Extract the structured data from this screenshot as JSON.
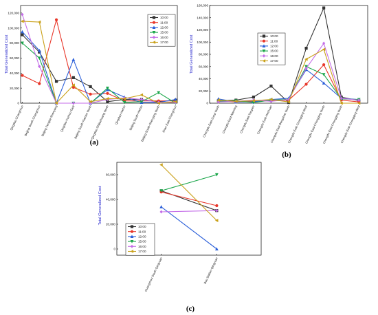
{
  "colors": {
    "10:00": "#333333",
    "11:00": "#e8372a",
    "12:00": "#2b5fd9",
    "15:00": "#1aa64a",
    "16:00": "#c46ee8",
    "17:00": "#c9a018"
  },
  "markers": {
    "10:00": "square",
    "11:00": "circle",
    "12:00": "triangle-up",
    "15:00": "triangle-down",
    "16:00": "diamond",
    "17:00": "triangle-left"
  },
  "chart_data": [
    {
      "panel": "(a)",
      "type": "line",
      "ylabel": "Total Generalized Cost",
      "ylim": [
        0,
        130000
      ],
      "yticks": [
        0,
        20000,
        40000,
        60000,
        80000,
        100000,
        120000
      ],
      "ytick_labels": [
        "0",
        "20,000",
        "40,000",
        "60,000",
        "80,000",
        "100,000",
        "120,000"
      ],
      "legend": "top-right",
      "categories": [
        "Qingdao-Changchun",
        "Beijing South-Changchun",
        "Beijing Fengtai-Shenyang",
        "Qingdao-Xuzhou East",
        "Beijing South-Xiamen North",
        "Qingdao-Shijiazhuang North",
        "Qingdao-Harbin",
        "Beijing South-Harbin",
        "Beijing South-Shenyang North",
        "Jinan East-Changchun"
      ],
      "series": [
        {
          "name": "10:00",
          "values": [
            91000,
            68000,
            29000,
            34000,
            22000,
            2000,
            5000,
            5000,
            2000,
            4000
          ]
        },
        {
          "name": "11:00",
          "values": [
            37000,
            26000,
            111000,
            21000,
            12000,
            13000,
            3000,
            3000,
            3000,
            3000
          ]
        },
        {
          "name": "12:00",
          "values": [
            95000,
            70000,
            0,
            58000,
            0,
            18000,
            8000,
            1000,
            1000,
            5000
          ]
        },
        {
          "name": "15:00",
          "values": [
            80000,
            60000,
            0,
            0,
            0,
            20000,
            1000,
            2000,
            14000,
            0
          ]
        },
        {
          "name": "16:00",
          "values": [
            118000,
            49000,
            0,
            0,
            0,
            5000,
            7000,
            5000,
            1000,
            1000
          ]
        },
        {
          "name": "17:00",
          "values": [
            109000,
            108000,
            0,
            24000,
            2000,
            6000,
            6000,
            11000,
            0,
            2000
          ]
        }
      ]
    },
    {
      "panel": "(b)",
      "type": "line",
      "ylabel": "Total Generalized Cost",
      "ylim": [
        0,
        160000
      ],
      "yticks": [
        0,
        20000,
        40000,
        60000,
        80000,
        100000,
        120000,
        140000,
        160000
      ],
      "ytick_labels": [
        "0",
        "20,000",
        "40,000",
        "60,000",
        "80,000",
        "100,000",
        "120,000",
        "140,000",
        "160,000"
      ],
      "legend": "top-left",
      "categories": [
        "Chengdu East-Zunyi North",
        "Chengdu East-Nanning",
        "Chengdu East-Tongren",
        "Chengdu East-Hechuan",
        "Chengdu East-Bengshan North",
        "Chengdu East-Chongqing West",
        "Chengdu East-Chongqing North",
        "Chengdu East-Chongqing North",
        "Chengdu East-Chongqing West"
      ],
      "series": [
        {
          "name": "10:00",
          "values": [
            4000,
            5000,
            10000,
            28000,
            1000,
            90000,
            156000,
            10000,
            4000
          ]
        },
        {
          "name": "11:00",
          "values": [
            4000,
            2000,
            3000,
            4000,
            5000,
            31000,
            63000,
            5000,
            2000
          ]
        },
        {
          "name": "12:00",
          "values": [
            7000,
            2000,
            2000,
            6000,
            8000,
            55000,
            33000,
            8000,
            6000
          ]
        },
        {
          "name": "15:00",
          "values": [
            3000,
            4000,
            1000,
            5000,
            6000,
            60000,
            47000,
            7000,
            6000
          ]
        },
        {
          "name": "16:00",
          "values": [
            2000,
            3000,
            5000,
            3000,
            6000,
            57000,
            98000,
            8000,
            5000
          ]
        },
        {
          "name": "17:00",
          "values": [
            5000,
            3000,
            4000,
            6000,
            2000,
            72000,
            88000,
            0,
            0
          ]
        }
      ]
    },
    {
      "panel": "(c)",
      "type": "line",
      "ylabel": "Total Generalized Cost",
      "ylim": [
        -5000,
        70000
      ],
      "yticks": [
        0,
        20000,
        40000,
        60000
      ],
      "ytick_labels": [
        "0",
        "20,000",
        "40,000",
        "60,000"
      ],
      "legend": "left",
      "categories": [
        "Guangzhou South-Qingyuan",
        "Bao Station-Qingyuan"
      ],
      "series": [
        {
          "name": "10:00",
          "values": [
            47000,
            31000
          ]
        },
        {
          "name": "11:00",
          "values": [
            46000,
            35000
          ]
        },
        {
          "name": "12:00",
          "values": [
            34000,
            0
          ]
        },
        {
          "name": "15:00",
          "values": [
            47000,
            60000
          ]
        },
        {
          "name": "16:00",
          "values": [
            30000,
            31000
          ]
        },
        {
          "name": "17:00",
          "values": [
            68000,
            23000
          ]
        }
      ]
    }
  ]
}
